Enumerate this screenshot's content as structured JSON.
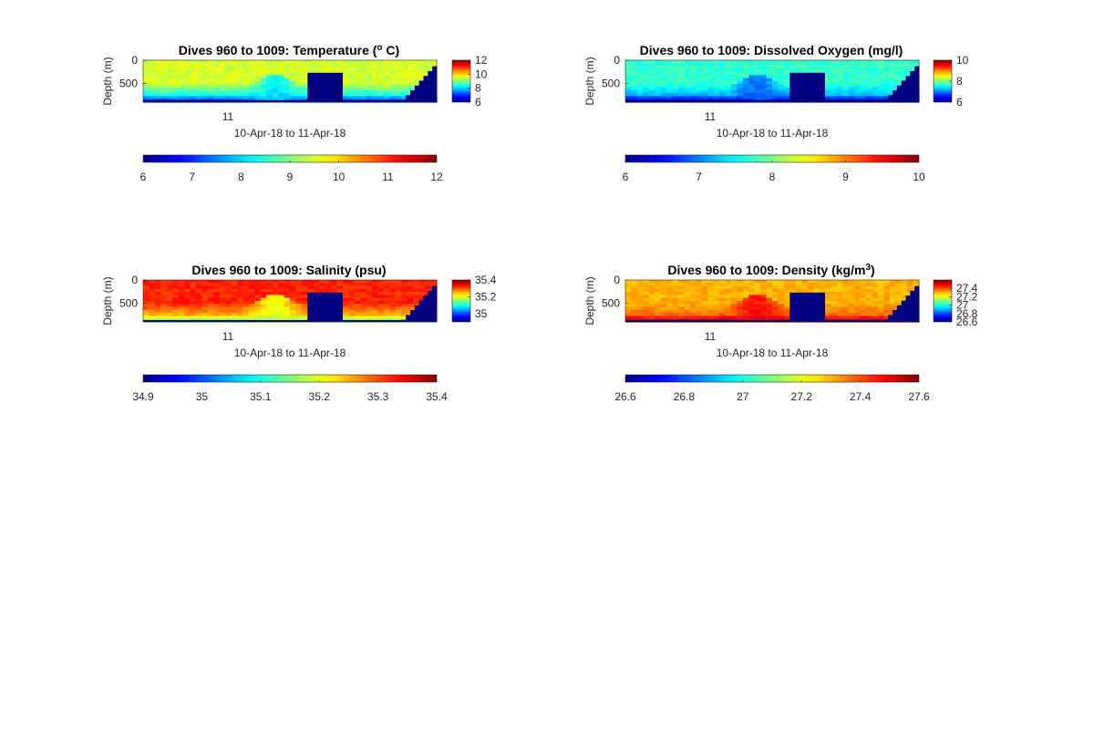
{
  "figure": {
    "background": "#ffffff"
  },
  "colormap": "jet",
  "chart_data": [
    {
      "type": "heatmap",
      "title_main": "Dives 960 to 1009: Temperature (",
      "title_sup": "o",
      "title_tail": " C)",
      "ylabel": "Depth (m)",
      "xlabel": "10-Apr-18 to 11-Apr-18",
      "x_tick_labels": [
        "11"
      ],
      "y_tick_labels": [
        "0",
        "500"
      ],
      "y_ticks": [
        0,
        500
      ],
      "ylim": [
        0,
        1000
      ],
      "y_reversed": true,
      "clim": [
        6,
        12
      ],
      "side_colorbar_ticks": [
        6,
        8,
        10,
        12
      ],
      "side_colorbar_tick_labels": [
        "6",
        "8",
        "10",
        "12"
      ],
      "bottom_colorbar_ticks": [
        6,
        7,
        8,
        9,
        10,
        11,
        12
      ],
      "bottom_colorbar_tick_labels": [
        "6",
        "7",
        "8",
        "9",
        "10",
        "11",
        "12"
      ],
      "background_value": 9.5,
      "deep_value": 7.8,
      "bottom_value": 7.0,
      "bulge_value": 8.0,
      "n_dives": 50,
      "missing_fill": "#000080"
    },
    {
      "type": "heatmap",
      "title_main": "Dives 960 to 1009: Dissolved Oxygen (mg/l)",
      "title_sup": "",
      "title_tail": "",
      "ylabel": "Depth (m)",
      "xlabel": "10-Apr-18 to 11-Apr-18",
      "x_tick_labels": [
        "11"
      ],
      "y_tick_labels": [
        "0",
        "500"
      ],
      "y_ticks": [
        0,
        500
      ],
      "ylim": [
        0,
        1000
      ],
      "y_reversed": true,
      "clim": [
        6,
        10
      ],
      "side_colorbar_ticks": [
        6,
        8,
        10
      ],
      "side_colorbar_tick_labels": [
        "6",
        "8",
        "10"
      ],
      "bottom_colorbar_ticks": [
        6,
        7,
        8,
        9,
        10
      ],
      "bottom_colorbar_tick_labels": [
        "6",
        "7",
        "8",
        "9",
        "10"
      ],
      "background_value": 7.7,
      "deep_value": 7.0,
      "bottom_value": 6.3,
      "bulge_value": 6.8,
      "n_dives": 50,
      "missing_fill": "#000080"
    },
    {
      "type": "heatmap",
      "title_main": "Dives 960 to 1009: Salinity (psu)",
      "title_sup": "",
      "title_tail": "",
      "ylabel": "Depth (m)",
      "xlabel": "10-Apr-18 to 11-Apr-18",
      "x_tick_labels": [
        "11"
      ],
      "y_tick_labels": [
        "0",
        "500"
      ],
      "y_ticks": [
        0,
        500
      ],
      "ylim": [
        0,
        1000
      ],
      "y_reversed": true,
      "clim": [
        34.9,
        35.4
      ],
      "side_colorbar_ticks": [
        35,
        35.2,
        35.4
      ],
      "side_colorbar_tick_labels": [
        "35",
        "35.2",
        "35.4"
      ],
      "bottom_colorbar_ticks": [
        34.9,
        35,
        35.1,
        35.2,
        35.3,
        35.4
      ],
      "bottom_colorbar_tick_labels": [
        "34.9",
        "35",
        "35.1",
        "35.2",
        "35.3",
        "35.4"
      ],
      "background_value": 35.32,
      "deep_value": 35.22,
      "bottom_value": 35.15,
      "bulge_value": 35.18,
      "n_dives": 50,
      "missing_fill": "#000080"
    },
    {
      "type": "heatmap",
      "title_main": "Dives 960 to 1009: Density (kg/m",
      "title_sup": "3",
      "title_tail": ")",
      "ylabel": "Depth (m)",
      "xlabel": "10-Apr-18 to 11-Apr-18",
      "x_tick_labels": [
        "11"
      ],
      "y_tick_labels": [
        "0",
        "500"
      ],
      "y_ticks": [
        0,
        500
      ],
      "ylim": [
        0,
        1000
      ],
      "y_reversed": true,
      "clim": [
        26.6,
        27.6
      ],
      "side_colorbar_ticks": [
        26.6,
        26.8,
        27,
        27.2,
        27.4
      ],
      "side_colorbar_tick_labels": [
        "26.6",
        "26.8",
        "27",
        "27.2",
        "27.4"
      ],
      "bottom_colorbar_ticks": [
        26.6,
        26.8,
        27,
        27.2,
        27.4,
        27.6
      ],
      "bottom_colorbar_tick_labels": [
        "26.6",
        "26.8",
        "27",
        "27.2",
        "27.4",
        "27.6"
      ],
      "background_value": 27.3,
      "deep_value": 27.4,
      "bottom_value": 27.55,
      "bulge_value": 27.5,
      "n_dives": 50,
      "missing_fill": "#000080"
    }
  ]
}
